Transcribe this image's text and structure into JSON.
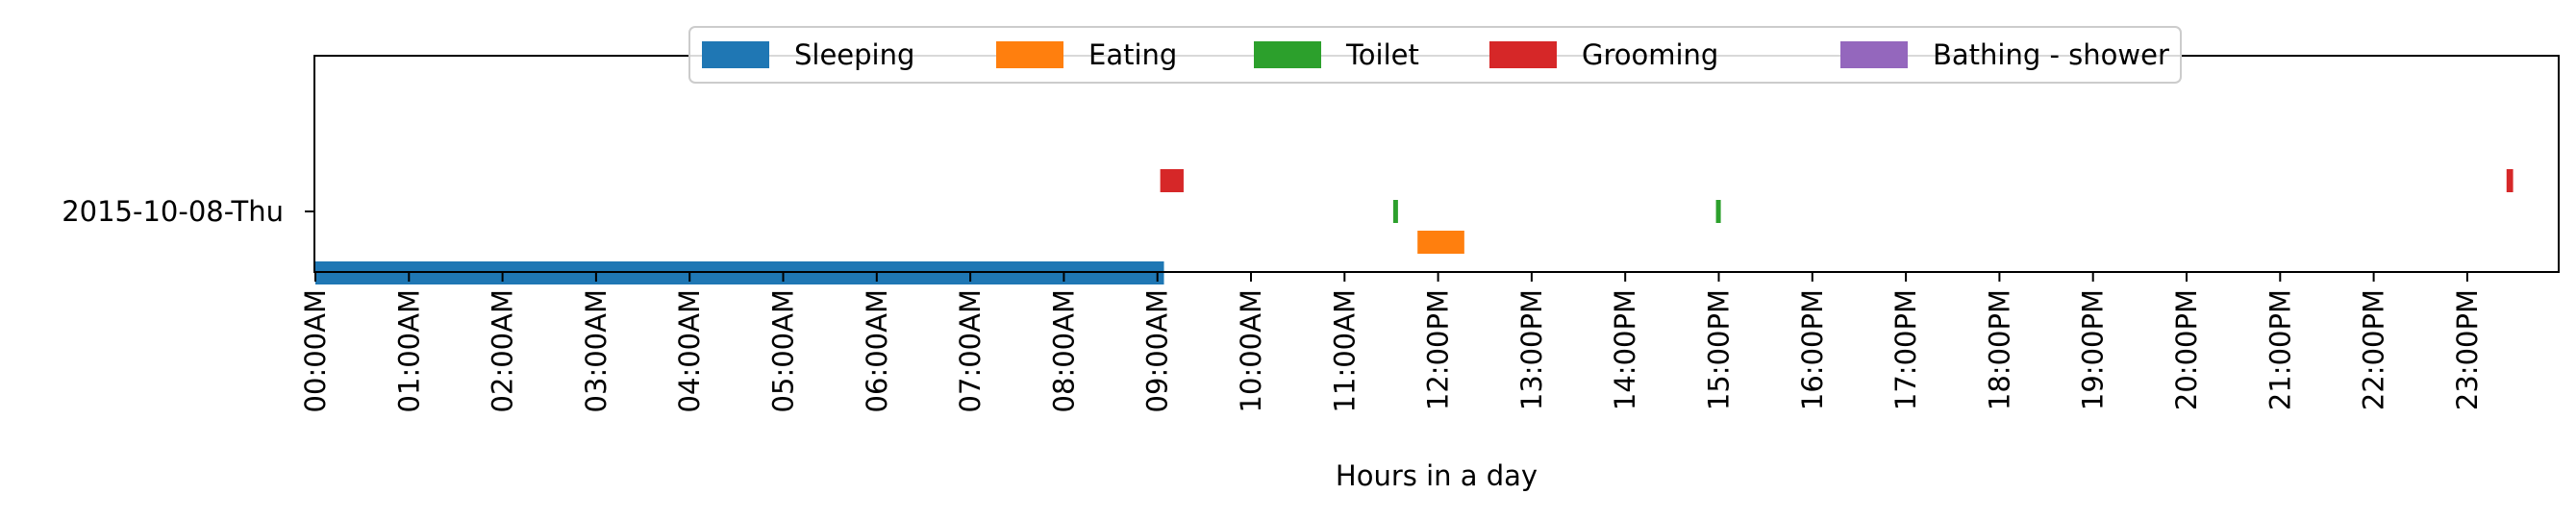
{
  "chart_data": {
    "type": "timeline",
    "xlabel": "Hours in a day",
    "ylabel": "",
    "days": [
      "2015-10-08-Thu"
    ],
    "x_ticks": [
      "00:00AM",
      "01:00AM",
      "02:00AM",
      "03:00AM",
      "04:00AM",
      "05:00AM",
      "06:00AM",
      "07:00AM",
      "08:00AM",
      "09:00AM",
      "10:00AM",
      "11:00AM",
      "12:00PM",
      "13:00PM",
      "14:00PM",
      "15:00PM",
      "16:00PM",
      "17:00PM",
      "18:00PM",
      "19:00PM",
      "20:00PM",
      "21:00PM",
      "22:00PM",
      "23:00PM"
    ],
    "xlim_hours": [
      0,
      24
    ],
    "legend_position": "top-center",
    "grid": false,
    "series": [
      {
        "name": "Sleeping",
        "color": "#1f77b4",
        "lane": -1.0
      },
      {
        "name": "Eating",
        "color": "#ff7f0e",
        "lane": -0.5
      },
      {
        "name": "Toilet",
        "color": "#2ca02c",
        "lane": 0.0
      },
      {
        "name": "Grooming",
        "color": "#d62728",
        "lane": 0.5
      },
      {
        "name": "Bathing - shower",
        "color": "#9467bd",
        "lane": 1.0
      }
    ],
    "events": [
      {
        "activity": "Sleeping",
        "day": 0,
        "start_hour": 0.0,
        "end_hour": 9.07
      },
      {
        "activity": "Grooming",
        "day": 0,
        "start_hour": 9.03,
        "end_hour": 9.28
      },
      {
        "activity": "Toilet",
        "day": 0,
        "start_hour": 11.52,
        "end_hour": 11.57
      },
      {
        "activity": "Eating",
        "day": 0,
        "start_hour": 11.78,
        "end_hour": 12.28
      },
      {
        "activity": "Toilet",
        "day": 0,
        "start_hour": 14.97,
        "end_hour": 15.02
      },
      {
        "activity": "Grooming",
        "day": 0,
        "start_hour": 23.42,
        "end_hour": 23.49
      }
    ]
  }
}
